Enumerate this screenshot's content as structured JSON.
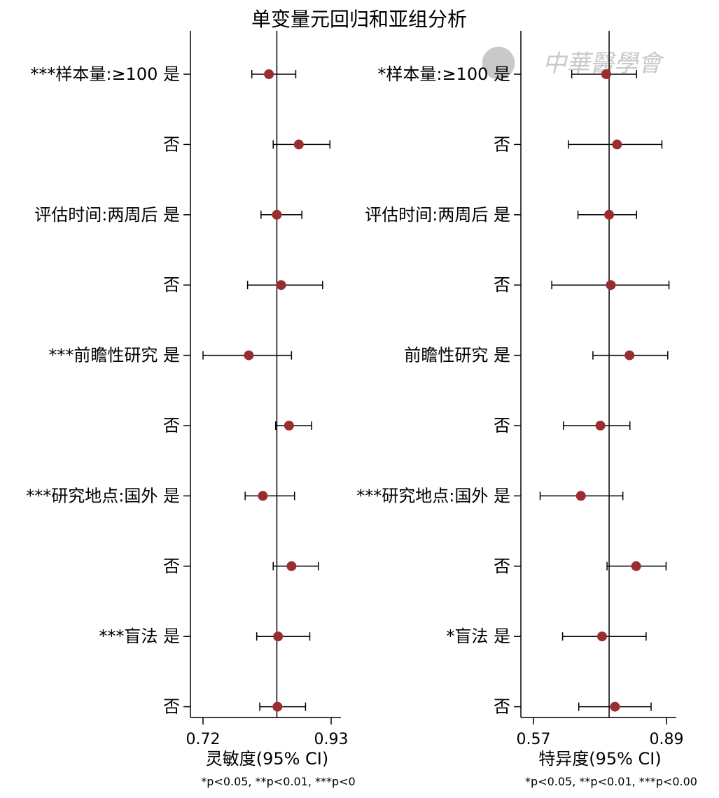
{
  "title": "单变量元回归和亚组分析",
  "watermark": "中華醫學會",
  "colors": {
    "marker": "#9b2d30",
    "line": "#000000",
    "watermark": "#c9c9c9"
  },
  "chart_data": [
    {
      "type": "forest",
      "panel": "sensitivity",
      "xlabel": "灵敏度(95% CI)",
      "footnote": "*p<0.05, **p<0.01, ***p<0",
      "xlim": [
        0.715,
        0.99
      ],
      "xticks": [
        {
          "value": 0.72,
          "label": "0.72"
        },
        {
          "value": 0.93,
          "label": "0.93"
        }
      ],
      "reference": 0.841,
      "rows": [
        {
          "label": "***样本量:≥100 是",
          "est": 0.828,
          "lo": 0.8,
          "hi": 0.872
        },
        {
          "label": "否",
          "est": 0.877,
          "lo": 0.835,
          "hi": 0.928
        },
        {
          "label": "评估时间:两周后 是",
          "est": 0.841,
          "lo": 0.815,
          "hi": 0.882
        },
        {
          "label": "否",
          "est": 0.848,
          "lo": 0.793,
          "hi": 0.916
        },
        {
          "label": "***前瞻性研究 是",
          "est": 0.795,
          "lo": 0.72,
          "hi": 0.865
        },
        {
          "label": "否",
          "est": 0.861,
          "lo": 0.839,
          "hi": 0.898
        },
        {
          "label": "***研究地点:国外 是",
          "est": 0.818,
          "lo": 0.789,
          "hi": 0.87
        },
        {
          "label": "否",
          "est": 0.865,
          "lo": 0.835,
          "hi": 0.909
        },
        {
          "label": "***盲法 是",
          "est": 0.843,
          "lo": 0.808,
          "hi": 0.895
        },
        {
          "label": "否",
          "est": 0.842,
          "lo": 0.813,
          "hi": 0.888
        }
      ]
    },
    {
      "type": "forest",
      "panel": "specificity",
      "xlabel": "特异度(95% CI)",
      "footnote": "*p<0.05, **p<0.01, ***p<0.00",
      "xlim": [
        0.555,
        0.92
      ],
      "xticks": [
        {
          "value": 0.57,
          "label": "0.57"
        },
        {
          "value": 0.89,
          "label": "0.89"
        }
      ],
      "reference": 0.752,
      "rows": [
        {
          "label": "*样本量:≥100 是",
          "est": 0.745,
          "lo": 0.662,
          "hi": 0.818
        },
        {
          "label": "否",
          "est": 0.771,
          "lo": 0.654,
          "hi": 0.879
        },
        {
          "label": "评估时间:两周后 是",
          "est": 0.752,
          "lo": 0.677,
          "hi": 0.818
        },
        {
          "label": "否",
          "est": 0.756,
          "lo": 0.614,
          "hi": 0.896
        },
        {
          "label": "前瞻性研究 是",
          "est": 0.801,
          "lo": 0.713,
          "hi": 0.893
        },
        {
          "label": "否",
          "est": 0.731,
          "lo": 0.642,
          "hi": 0.802
        },
        {
          "label": "***研究地点:国外 是",
          "est": 0.684,
          "lo": 0.586,
          "hi": 0.785
        },
        {
          "label": "否",
          "est": 0.817,
          "lo": 0.747,
          "hi": 0.889
        },
        {
          "label": "*盲法 是",
          "est": 0.735,
          "lo": 0.64,
          "hi": 0.841
        },
        {
          "label": "否",
          "est": 0.766,
          "lo": 0.679,
          "hi": 0.853
        }
      ]
    }
  ]
}
